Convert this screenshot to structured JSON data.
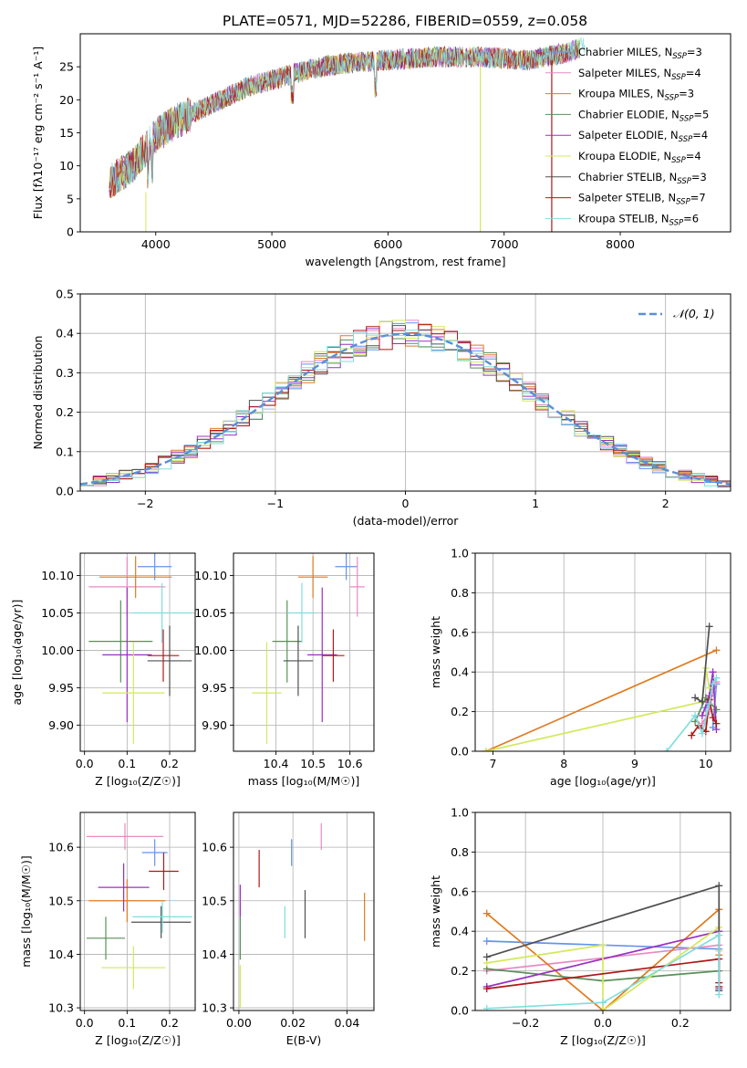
{
  "figure_title": "PLATE=0571, MJD=52286, FIBERID=0559, z=0.058",
  "models": [
    {
      "name": "Chabrier MILES",
      "nssp": "3",
      "color": "#6495ed"
    },
    {
      "name": "Salpeter MILES",
      "nssp": "4",
      "color": "#e78ac3"
    },
    {
      "name": "Kroupa MILES",
      "nssp": "3",
      "color": "#e07b20"
    },
    {
      "name": "Chabrier ELODIE",
      "nssp": "5",
      "color": "#5a8f5a"
    },
    {
      "name": "Salpeter ELODIE",
      "nssp": "4",
      "color": "#9b30c0"
    },
    {
      "name": "Kroupa ELODIE",
      "nssp": "4",
      "color": "#d4e85a"
    },
    {
      "name": "Chabrier STELIB",
      "nssp": "3",
      "color": "#505050"
    },
    {
      "name": "Salpeter STELIB",
      "nssp": "7",
      "color": "#b01818"
    },
    {
      "name": "Kroupa STELIB",
      "nssp": "6",
      "color": "#80dede"
    }
  ],
  "legend_nssp_prefix": "N",
  "legend_nssp_sub": "SSP",
  "chart_data": [
    {
      "id": "spectrum",
      "type": "line",
      "xlabel": "wavelength [Angstrom, rest frame]",
      "ylabel": "Flux [fλ10⁻¹⁷ erg cm⁻² s⁻¹ A⁻¹]",
      "xlim": [
        3350,
        8950
      ],
      "ylim": [
        0,
        30
      ],
      "xticks": [
        4000,
        5000,
        6000,
        7000,
        8000
      ],
      "yticks": [
        0,
        5,
        10,
        15,
        20,
        25
      ],
      "grid": false,
      "legend": "right",
      "continuum": {
        "x": [
          3600,
          3800,
          4000,
          4200,
          4500,
          4800,
          5000,
          5300,
          5600,
          6000,
          6400,
          6800,
          7200,
          7500,
          7700
        ],
        "y": [
          7.5,
          10,
          14.5,
          17,
          19.5,
          22,
          23,
          24.5,
          25.5,
          26,
          26.5,
          26.5,
          26,
          27,
          28
        ]
      }
    },
    {
      "id": "residuals",
      "type": "histogram",
      "xlabel": "(data-model)/error",
      "ylabel": "Normed distribution",
      "xlim": [
        -2.5,
        2.5
      ],
      "ylim": [
        0,
        0.5
      ],
      "xticks": [
        -2,
        -1,
        0,
        1,
        2
      ],
      "yticks": [
        0.0,
        0.1,
        0.2,
        0.3,
        0.4,
        0.5
      ],
      "grid": true,
      "legend": "top-right",
      "reference_label": "𝒩(0, 1)",
      "reference_color": "#5b8fd6"
    },
    {
      "id": "age-z",
      "type": "errorbar",
      "xlabel": "Z [log₁₀(Z/Z☉)]",
      "ylabel": "age  [log₁₀(age/yr)]",
      "xlim": [
        -0.01,
        0.26
      ],
      "ylim": [
        9.865,
        10.13
      ],
      "xticks": [
        0.0,
        0.1,
        0.2
      ],
      "yticks": [
        9.9,
        9.95,
        10.0,
        10.05,
        10.1
      ],
      "grid": true,
      "points": [
        {
          "x": 0.165,
          "y": 10.112,
          "xe": 0.04,
          "ye": 0.018
        },
        {
          "x": 0.1,
          "y": 10.085,
          "xe": 0.09,
          "ye": 0.04
        },
        {
          "x": 0.12,
          "y": 10.098,
          "xe": 0.085,
          "ye": 0.028
        },
        {
          "x": 0.085,
          "y": 10.012,
          "xe": 0.075,
          "ye": 0.055
        },
        {
          "x": 0.1,
          "y": 9.994,
          "xe": 0.058,
          "ye": 0.09
        },
        {
          "x": 0.115,
          "y": 9.943,
          "xe": 0.073,
          "ye": 0.068
        },
        {
          "x": 0.2,
          "y": 9.986,
          "xe": 0.052,
          "ye": 0.047
        },
        {
          "x": 0.185,
          "y": 9.993,
          "xe": 0.037,
          "ye": 0.035
        },
        {
          "x": 0.182,
          "y": 10.05,
          "xe": 0.07,
          "ye": 0.04
        }
      ]
    },
    {
      "id": "age-mass",
      "type": "errorbar",
      "xlabel": "mass [log₁₀(M/M☉)]",
      "ylabel": "",
      "xlim": [
        10.285,
        10.665
      ],
      "ylim": [
        9.865,
        10.13
      ],
      "xticks": [
        10.4,
        10.5,
        10.6
      ],
      "yticks": [
        9.9,
        9.95,
        10.0,
        10.05,
        10.1
      ],
      "grid": true,
      "points": [
        {
          "x": 10.59,
          "y": 10.112,
          "xe": 0.03,
          "ye": 0.018
        },
        {
          "x": 10.62,
          "y": 10.085,
          "xe": 0.02,
          "ye": 0.04
        },
        {
          "x": 10.5,
          "y": 10.098,
          "xe": 0.04,
          "ye": 0.028
        },
        {
          "x": 10.43,
          "y": 10.012,
          "xe": 0.04,
          "ye": 0.055
        },
        {
          "x": 10.525,
          "y": 9.994,
          "xe": 0.04,
          "ye": 0.09
        },
        {
          "x": 10.375,
          "y": 9.943,
          "xe": 0.04,
          "ye": 0.068
        },
        {
          "x": 10.46,
          "y": 9.986,
          "xe": 0.04,
          "ye": 0.047
        },
        {
          "x": 10.555,
          "y": 9.993,
          "xe": 0.03,
          "ye": 0.035
        },
        {
          "x": 10.47,
          "y": 10.05,
          "xe": 0.04,
          "ye": 0.04
        }
      ]
    },
    {
      "id": "mass-age",
      "type": "line",
      "xlabel": "age  [log₁₀(age/yr)]",
      "ylabel": "mass weight",
      "xlim": [
        6.75,
        10.35
      ],
      "ylim": [
        0,
        1
      ],
      "xticks": [
        7,
        8,
        9,
        10
      ],
      "yticks": [
        0.0,
        0.2,
        0.4,
        0.6,
        0.8,
        1.0
      ],
      "grid": true,
      "series": [
        {
          "model": 0,
          "x": [
            10.0,
            10.15,
            10.1
          ],
          "y": [
            0.22,
            0.34,
            0.12
          ]
        },
        {
          "model": 1,
          "x": [
            9.95,
            10.05,
            10.1,
            10.15
          ],
          "y": [
            0.14,
            0.2,
            0.31,
            0.35
          ]
        },
        {
          "model": 2,
          "x": [
            6.9,
            10.15
          ],
          "y": [
            0.0,
            0.51
          ]
        },
        {
          "model": 3,
          "x": [
            9.85,
            10.0,
            10.15
          ],
          "y": [
            0.15,
            0.27,
            0.21
          ]
        },
        {
          "model": 4,
          "x": [
            9.95,
            10.05,
            10.1,
            10.15
          ],
          "y": [
            0.18,
            0.28,
            0.4,
            0.11
          ]
        },
        {
          "model": 5,
          "x": [
            6.9,
            9.95,
            10.0,
            10.05
          ],
          "y": [
            0.0,
            0.25,
            0.42,
            0.32
          ]
        },
        {
          "model": 6,
          "x": [
            9.85,
            9.95,
            10.05
          ],
          "y": [
            0.27,
            0.25,
            0.63
          ]
        },
        {
          "model": 7,
          "x": [
            9.8,
            9.9,
            10.0,
            10.05,
            10.1,
            10.15
          ],
          "y": [
            0.08,
            0.13,
            0.1,
            0.26,
            0.17,
            0.14
          ]
        },
        {
          "model": 8,
          "x": [
            9.45,
            9.85,
            9.95,
            10.05,
            10.1,
            10.15
          ],
          "y": [
            0.0,
            0.18,
            0.09,
            0.24,
            0.34,
            0.37
          ]
        }
      ]
    },
    {
      "id": "mass-z",
      "type": "errorbar",
      "xlabel": "Z [log₁₀(Z/Z☉)]",
      "ylabel": "mass [log₁₀(M/M☉)]",
      "xlim": [
        -0.01,
        0.26
      ],
      "ylim": [
        10.295,
        10.665
      ],
      "xticks": [
        0.0,
        0.1,
        0.2
      ],
      "yticks": [
        10.3,
        10.4,
        10.5,
        10.6
      ],
      "grid": true,
      "points": [
        {
          "x": 0.165,
          "y": 10.59,
          "xe": 0.03,
          "ye": 0.025
        },
        {
          "x": 0.095,
          "y": 10.62,
          "xe": 0.09,
          "ye": 0.025
        },
        {
          "x": 0.1,
          "y": 10.5,
          "xe": 0.09,
          "ye": 0.04
        },
        {
          "x": 0.05,
          "y": 10.43,
          "xe": 0.045,
          "ye": 0.04
        },
        {
          "x": 0.092,
          "y": 10.525,
          "xe": 0.06,
          "ye": 0.045
        },
        {
          "x": 0.115,
          "y": 10.375,
          "xe": 0.075,
          "ye": 0.04
        },
        {
          "x": 0.18,
          "y": 10.46,
          "xe": 0.07,
          "ye": 0.03
        },
        {
          "x": 0.186,
          "y": 10.555,
          "xe": 0.035,
          "ye": 0.035
        },
        {
          "x": 0.183,
          "y": 10.47,
          "xe": 0.07,
          "ye": 0.03
        }
      ]
    },
    {
      "id": "mass-ebv",
      "type": "errorbar",
      "xlabel": "E(B-V)",
      "ylabel": "",
      "xlim": [
        -0.002,
        0.05
      ],
      "ylim": [
        10.295,
        10.665
      ],
      "xticks": [
        0.0,
        0.02,
        0.04
      ],
      "yticks": [
        10.3,
        10.4,
        10.5,
        10.6
      ],
      "grid": true,
      "points": [
        {
          "x": 0.0195,
          "y": 10.59,
          "xe": 0,
          "ye": 0.025
        },
        {
          "x": 0.0305,
          "y": 10.62,
          "xe": 0,
          "ye": 0.025
        },
        {
          "x": 0.0465,
          "y": 10.47,
          "xe": 0,
          "ye": 0.045
        },
        {
          "x": 0.0005,
          "y": 10.43,
          "xe": 0,
          "ye": 0.04
        },
        {
          "x": 0.0005,
          "y": 10.5,
          "xe": 0,
          "ye": 0.03
        },
        {
          "x": 0.0005,
          "y": 10.34,
          "xe": 0,
          "ye": 0.04
        },
        {
          "x": 0.0245,
          "y": 10.475,
          "xe": 0,
          "ye": 0.045
        },
        {
          "x": 0.0075,
          "y": 10.56,
          "xe": 0,
          "ye": 0.035
        },
        {
          "x": 0.017,
          "y": 10.46,
          "xe": 0,
          "ye": 0.03
        }
      ]
    },
    {
      "id": "mass-zw",
      "type": "line",
      "xlabel": "Z [log₁₀(Z/Z☉)]",
      "ylabel": "mass weight",
      "xlim": [
        -0.33,
        0.33
      ],
      "ylim": [
        0,
        1
      ],
      "xticks": [
        -0.2,
        0.0,
        0.2
      ],
      "yticks": [
        0.0,
        0.2,
        0.4,
        0.6,
        0.8,
        1.0
      ],
      "grid": true,
      "series": [
        {
          "model": 0,
          "x": [
            -0.3,
            0.3
          ],
          "y": [
            0.35,
            0.31
          ]
        },
        {
          "model": 1,
          "x": [
            -0.3,
            0.3,
            0.3
          ],
          "y": [
            0.2,
            0.33,
            0.14
          ]
        },
        {
          "model": 2,
          "x": [
            -0.3,
            0.0,
            0.3,
            0.3
          ],
          "y": [
            0.49,
            0.0,
            0.51,
            0.28
          ]
        },
        {
          "model": 3,
          "x": [
            -0.3,
            0.0,
            0.3
          ],
          "y": [
            0.21,
            0.15,
            0.2
          ]
        },
        {
          "model": 4,
          "x": [
            -0.3,
            0.3,
            0.3
          ],
          "y": [
            0.12,
            0.4,
            0.11
          ]
        },
        {
          "model": 5,
          "x": [
            -0.3,
            0.0,
            0.0,
            0.3,
            0.3
          ],
          "y": [
            0.24,
            0.33,
            0.0,
            0.42,
            0.3
          ]
        },
        {
          "model": 6,
          "x": [
            -0.3,
            0.3,
            0.3
          ],
          "y": [
            0.27,
            0.63,
            0.1
          ]
        },
        {
          "model": 7,
          "x": [
            -0.3,
            0.3,
            0.3,
            0.3
          ],
          "y": [
            0.11,
            0.26,
            0.14,
            0.12
          ]
        },
        {
          "model": 8,
          "x": [
            -0.3,
            0.0,
            0.3,
            0.3
          ],
          "y": [
            0.01,
            0.04,
            0.38,
            0.08
          ]
        }
      ]
    }
  ]
}
